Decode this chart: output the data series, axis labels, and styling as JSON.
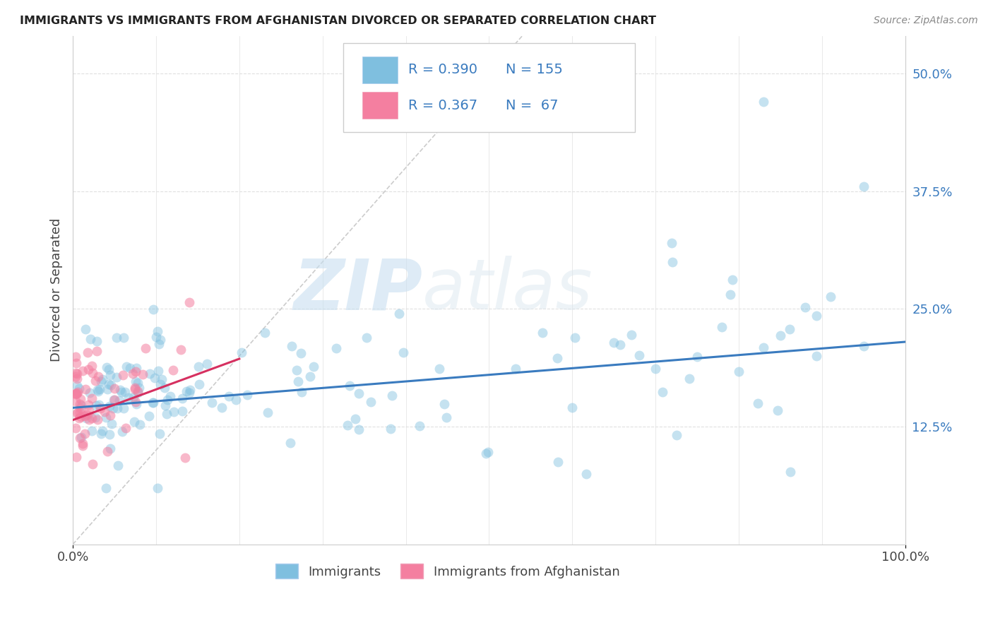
{
  "title": "IMMIGRANTS VS IMMIGRANTS FROM AFGHANISTAN DIVORCED OR SEPARATED CORRELATION CHART",
  "source_text": "Source: ZipAtlas.com",
  "ylabel": "Divorced or Separated",
  "xlim": [
    0.0,
    1.0
  ],
  "ylim": [
    0.0,
    0.54
  ],
  "xtick_labels": [
    "0.0%",
    "100.0%"
  ],
  "ytick_labels": [
    "12.5%",
    "25.0%",
    "37.5%",
    "50.0%"
  ],
  "ytick_positions": [
    0.125,
    0.25,
    0.375,
    0.5
  ],
  "legend_label1": "Immigrants",
  "legend_label2": "Immigrants from Afghanistan",
  "R1": 0.39,
  "N1": 155,
  "R2": 0.367,
  "N2": 67,
  "color_blue": "#7fbfdf",
  "color_pink": "#f47fa0",
  "color_blue_line": "#3a7bbf",
  "color_pink_line": "#d63060",
  "color_diagonal": "#cccccc",
  "watermark_zip": "ZIP",
  "watermark_atlas": "atlas",
  "background_color": "#ffffff",
  "grid_color": "#e0e0e0"
}
